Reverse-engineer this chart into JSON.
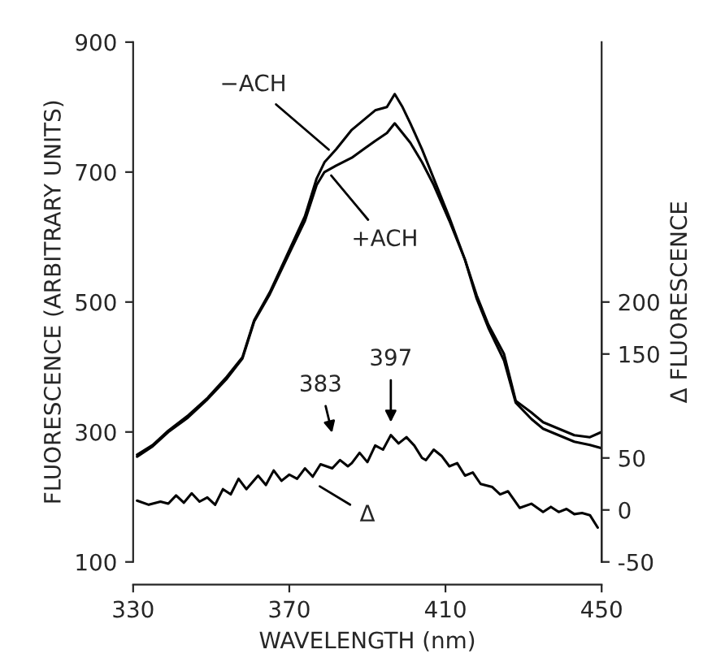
{
  "chart_data": {
    "type": "line",
    "xlabel": "WAVELENGTH (nm)",
    "ylabel": "FLUORESCENCE (ARBITRARY UNITS)",
    "y2label": "Δ FLUORESCENCE",
    "xlim": [
      330,
      450
    ],
    "xticks": [
      330,
      370,
      410,
      450
    ],
    "ylim": [
      100,
      900
    ],
    "yticks": [
      100,
      300,
      500,
      700,
      900
    ],
    "y2lim": [
      -50,
      450
    ],
    "y2ticks": [
      -50,
      0,
      50,
      150,
      200
    ],
    "grid": false,
    "legend": false,
    "marker": "none",
    "line_style": "solid",
    "series": [
      {
        "color": "#000000",
        "x": [
          331,
          335,
          339,
          344,
          349,
          354,
          358,
          361,
          365,
          370,
          374,
          377,
          379,
          382,
          386,
          389,
          392,
          395,
          397,
          399,
          401,
          404,
          407,
          411,
          415,
          418,
          421,
          425,
          428,
          432,
          435,
          439,
          443,
          447,
          450
        ],
        "values": [
          265,
          280,
          302,
          325,
          352,
          385,
          415,
          472,
          515,
          580,
          632,
          690,
          715,
          735,
          765,
          780,
          795,
          800,
          820,
          800,
          775,
          735,
          690,
          630,
          565,
          510,
          465,
          420,
          348,
          330,
          315,
          305,
          295,
          292,
          300
        ]
      },
      {
        "color": "#000000",
        "x": [
          331,
          335,
          339,
          344,
          349,
          354,
          358,
          361,
          365,
          370,
          374,
          377,
          379,
          382,
          386,
          389,
          392,
          395,
          397,
          399,
          401,
          404,
          407,
          411,
          415,
          418,
          421,
          425,
          428,
          432,
          435,
          439,
          443,
          447,
          450
        ],
        "values": [
          262,
          278,
          300,
          322,
          350,
          382,
          413,
          470,
          512,
          575,
          625,
          680,
          700,
          710,
          722,
          735,
          748,
          760,
          775,
          760,
          745,
          715,
          680,
          625,
          565,
          505,
          460,
          410,
          345,
          320,
          305,
          295,
          285,
          280,
          275
        ]
      },
      {
        "color": "#000000",
        "axis": "y2",
        "x": [
          331,
          334,
          337,
          339,
          341,
          343,
          345,
          347,
          349,
          351,
          353,
          355,
          357,
          359,
          362,
          364,
          366,
          368,
          370,
          372,
          374,
          376,
          378,
          381,
          383,
          385,
          386,
          388,
          390,
          392,
          394,
          396,
          398,
          400,
          402,
          404,
          405,
          407,
          409,
          411,
          413,
          415,
          417,
          419,
          422,
          424,
          426,
          429,
          432,
          435,
          437,
          439,
          441,
          443,
          445,
          447,
          449
        ],
        "values": [
          9,
          5,
          8,
          6,
          14,
          7,
          16,
          8,
          12,
          5,
          20,
          15,
          30,
          20,
          33,
          24,
          38,
          28,
          34,
          30,
          40,
          32,
          44,
          40,
          48,
          42,
          45,
          55,
          46,
          62,
          58,
          72,
          64,
          70,
          62,
          50,
          48,
          58,
          52,
          42,
          45,
          33,
          36,
          25,
          22,
          15,
          18,
          2,
          6,
          -2,
          3,
          -2,
          1,
          -4,
          -3,
          -5,
          -17
        ]
      }
    ],
    "annotations": [
      {
        "text": "−ACH",
        "x": 381,
        "y": 730
      },
      {
        "text": "+ACH",
        "x": 380,
        "y": 700
      },
      "Δ",
      "383",
      "397"
    ]
  }
}
